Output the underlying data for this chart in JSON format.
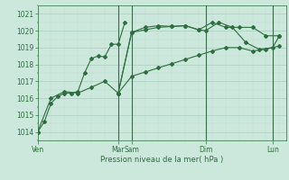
{
  "title": "",
  "xlabel": "Pression niveau de la mer( hPa )",
  "bg_color": "#cce8dc",
  "line_color": "#2d6e3e",
  "grid_major_color": "#aacfbe",
  "grid_minor_color": "#c0ddd0",
  "ylim": [
    1013.5,
    1021.5
  ],
  "yticks": [
    1014,
    1015,
    1016,
    1017,
    1018,
    1019,
    1020,
    1021
  ],
  "xlim": [
    0,
    120
  ],
  "day_positions": [
    0,
    72,
    84,
    150,
    210
  ],
  "day_labels": [
    "Ven",
    "Mar",
    "Sam",
    "Dim",
    "Lun"
  ],
  "vline_positions": [
    72,
    84,
    150,
    210
  ],
  "series1_x": [
    0,
    6,
    12,
    18,
    24,
    30,
    36,
    42,
    48,
    54,
    60,
    66,
    72,
    78
  ],
  "series1_y": [
    1014.0,
    1014.6,
    1015.7,
    1016.1,
    1016.3,
    1016.3,
    1016.4,
    1017.5,
    1018.35,
    1018.5,
    1018.45,
    1019.2,
    1019.2,
    1020.5
  ],
  "series2_x": [
    72,
    84,
    96,
    108,
    120,
    132,
    144,
    150,
    162,
    174,
    186,
    198,
    210,
    216
  ],
  "series2_y": [
    1016.3,
    1019.9,
    1020.05,
    1020.2,
    1020.25,
    1020.3,
    1020.05,
    1020.0,
    1020.5,
    1020.2,
    1019.3,
    1018.9,
    1019.0,
    1019.7
  ],
  "series3_x": [
    72,
    84,
    96,
    108,
    120,
    132,
    144,
    156,
    168,
    180,
    192,
    204,
    216
  ],
  "series3_y": [
    1016.3,
    1017.3,
    1017.55,
    1017.8,
    1018.05,
    1018.3,
    1018.55,
    1018.8,
    1019.0,
    1019.0,
    1018.8,
    1018.9,
    1019.1
  ],
  "series4_x": [
    0,
    12,
    24,
    36,
    48,
    60,
    72,
    84,
    96,
    108,
    120,
    132,
    144,
    156,
    168,
    180,
    192,
    204,
    216
  ],
  "series4_y": [
    1014.0,
    1016.0,
    1016.4,
    1016.3,
    1016.65,
    1017.0,
    1016.3,
    1019.9,
    1020.2,
    1020.3,
    1020.25,
    1020.3,
    1020.05,
    1020.5,
    1020.2,
    1020.2,
    1020.2,
    1019.7,
    1019.7
  ]
}
